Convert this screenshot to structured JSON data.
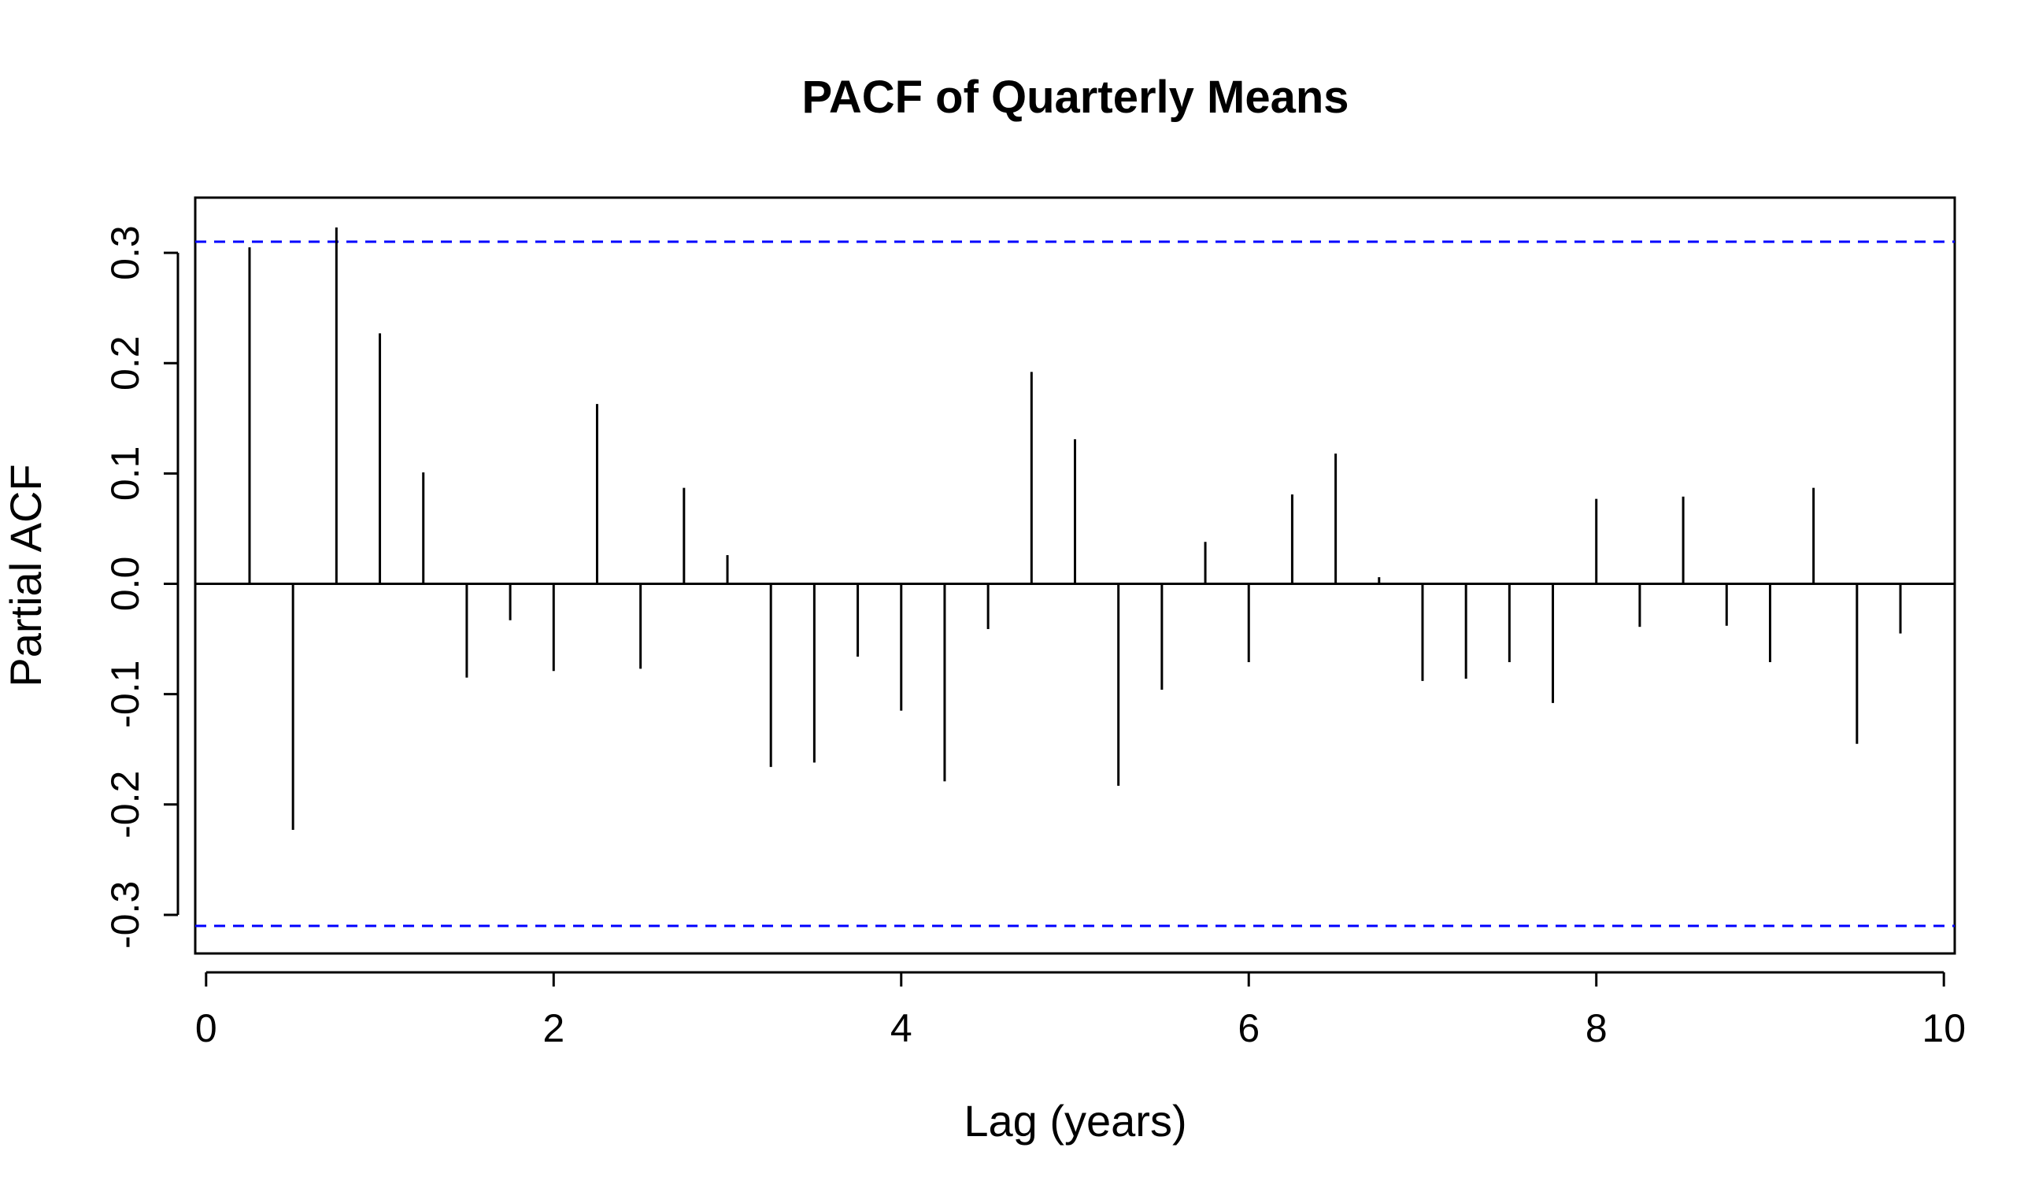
{
  "chart_data": {
    "type": "bar",
    "title": "PACF of Quarterly Means",
    "xlabel": "Lag (years)",
    "ylabel": "Partial ACF",
    "xlim": [
      -0.0625,
      10.0625
    ],
    "ylim": [
      -0.335,
      0.35
    ],
    "xticks": [
      "0",
      "2",
      "4",
      "6",
      "8",
      "10"
    ],
    "yticks": [
      "-0.3",
      "-0.2",
      "-0.1",
      "0.0",
      "0.1",
      "0.2",
      "0.3"
    ],
    "confidence_bound": 0.31,
    "colors": {
      "bars": "#000000",
      "bounds": "#0000ff",
      "frame": "#000000"
    },
    "series": [
      {
        "x": [
          0.25,
          0.5,
          0.75,
          1.0,
          1.25,
          1.5,
          1.75,
          2.0,
          2.25,
          2.5,
          2.75,
          3.0,
          3.25,
          3.5,
          3.75,
          4.0,
          4.25,
          4.5,
          4.75,
          5.0,
          5.25,
          5.5,
          5.75,
          6.0,
          6.25,
          6.5,
          6.75,
          7.0,
          7.25,
          7.5,
          7.75,
          8.0,
          8.25,
          8.5,
          8.75,
          9.0,
          9.25,
          9.5,
          9.75
        ],
        "values": [
          0.305,
          -0.223,
          0.323,
          0.227,
          0.101,
          -0.085,
          -0.033,
          -0.079,
          0.163,
          -0.077,
          0.087,
          0.026,
          -0.166,
          -0.162,
          -0.066,
          -0.115,
          -0.179,
          -0.041,
          0.192,
          0.131,
          -0.183,
          -0.096,
          0.038,
          -0.071,
          0.081,
          0.118,
          0.006,
          -0.088,
          -0.086,
          -0.071,
          -0.108,
          0.077,
          -0.039,
          0.079,
          -0.038,
          -0.071,
          0.087,
          -0.145,
          -0.045
        ]
      }
    ]
  }
}
